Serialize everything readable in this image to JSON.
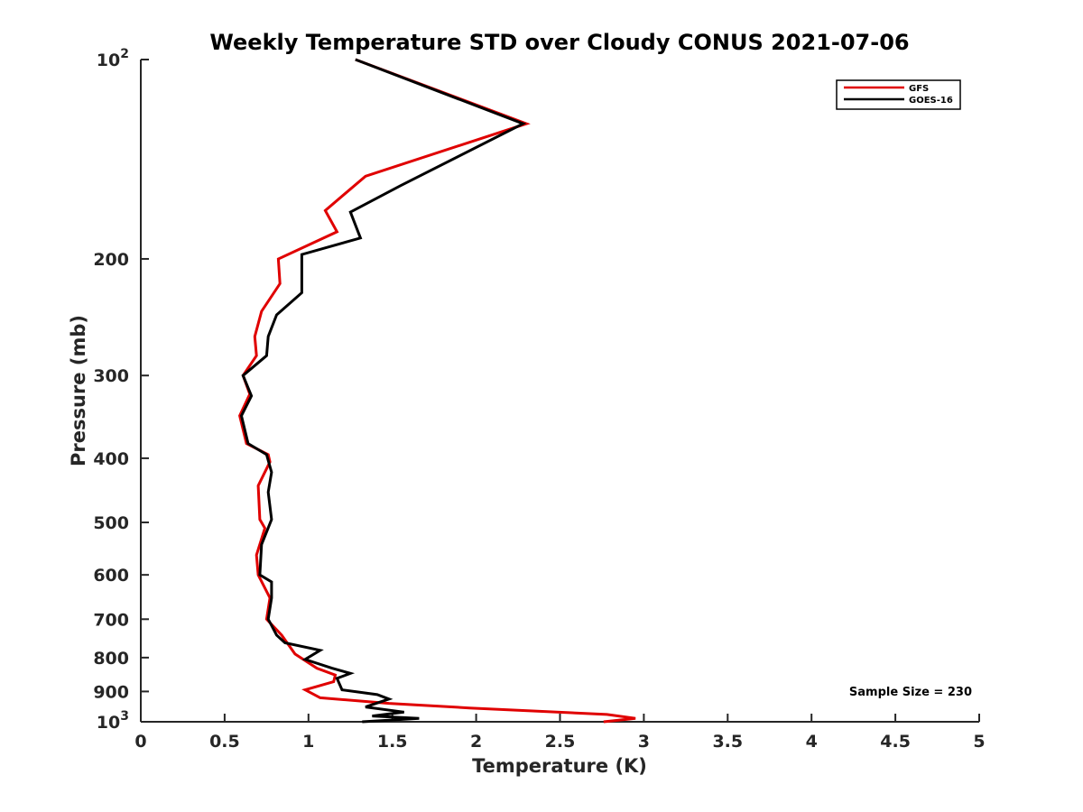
{
  "chart_data": {
    "type": "line",
    "title": "Weekly Temperature STD over Cloudy CONUS 2021-07-06",
    "xlabel": "Temperature (K)",
    "ylabel": "Pressure (mb)",
    "xlim": [
      0,
      5
    ],
    "ylim": [
      100,
      1000
    ],
    "y_scale": "log",
    "y_reversed": true,
    "x_ticks": [
      0,
      0.5,
      1,
      1.5,
      2,
      2.5,
      3,
      3.5,
      4,
      4.5,
      5
    ],
    "x_tick_labels": [
      "0",
      "0.5",
      "1",
      "1.5",
      "2",
      "2.5",
      "3",
      "3.5",
      "4",
      "4.5",
      "5"
    ],
    "y_ticks": [
      {
        "value": 100,
        "base": "10",
        "exp": "2"
      },
      {
        "value": 200,
        "label": "200"
      },
      {
        "value": 300,
        "label": "300"
      },
      {
        "value": 400,
        "label": "400"
      },
      {
        "value": 500,
        "label": "500"
      },
      {
        "value": 600,
        "label": "600"
      },
      {
        "value": 700,
        "label": "700"
      },
      {
        "value": 800,
        "label": "800"
      },
      {
        "value": 900,
        "label": "900"
      },
      {
        "value": 1000,
        "base": "10",
        "exp": "3"
      }
    ],
    "grid": false,
    "legend_position": "top-right",
    "annotation": "Sample Size = 230",
    "series": [
      {
        "name": "GFS",
        "color": "#e00000",
        "points": [
          [
            1.28,
            100
          ],
          [
            2.3,
            125
          ],
          [
            1.34,
            150
          ],
          [
            1.1,
            169
          ],
          [
            1.17,
            182
          ],
          [
            0.82,
            200
          ],
          [
            0.83,
            218
          ],
          [
            0.72,
            240
          ],
          [
            0.68,
            262
          ],
          [
            0.69,
            280
          ],
          [
            0.61,
            300
          ],
          [
            0.65,
            320
          ],
          [
            0.59,
            345
          ],
          [
            0.63,
            380
          ],
          [
            0.76,
            395
          ],
          [
            0.77,
            405
          ],
          [
            0.7,
            440
          ],
          [
            0.71,
            495
          ],
          [
            0.74,
            510
          ],
          [
            0.69,
            560
          ],
          [
            0.7,
            600
          ],
          [
            0.77,
            650
          ],
          [
            0.75,
            700
          ],
          [
            0.84,
            740
          ],
          [
            0.92,
            790
          ],
          [
            1.05,
            830
          ],
          [
            1.16,
            850
          ],
          [
            1.15,
            870
          ],
          [
            0.98,
            895
          ],
          [
            1.07,
            920
          ],
          [
            1.48,
            938
          ],
          [
            1.96,
            953
          ],
          [
            2.78,
            975
          ],
          [
            2.95,
            988
          ],
          [
            2.76,
            1000
          ]
        ]
      },
      {
        "name": "GOES-16",
        "color": "#000000",
        "points": [
          [
            1.28,
            100
          ],
          [
            2.28,
            125
          ],
          [
            1.55,
            155
          ],
          [
            1.25,
            170
          ],
          [
            1.31,
            186
          ],
          [
            0.96,
            197
          ],
          [
            0.96,
            225
          ],
          [
            0.81,
            243
          ],
          [
            0.76,
            262
          ],
          [
            0.75,
            280
          ],
          [
            0.61,
            300
          ],
          [
            0.66,
            322
          ],
          [
            0.6,
            345
          ],
          [
            0.64,
            380
          ],
          [
            0.75,
            395
          ],
          [
            0.78,
            420
          ],
          [
            0.76,
            450
          ],
          [
            0.78,
            495
          ],
          [
            0.72,
            540
          ],
          [
            0.71,
            600
          ],
          [
            0.78,
            615
          ],
          [
            0.78,
            650
          ],
          [
            0.76,
            700
          ],
          [
            0.81,
            740
          ],
          [
            0.86,
            760
          ],
          [
            1.07,
            780
          ],
          [
            0.98,
            805
          ],
          [
            1.14,
            830
          ],
          [
            1.25,
            845
          ],
          [
            1.17,
            860
          ],
          [
            1.2,
            895
          ],
          [
            1.41,
            910
          ],
          [
            1.48,
            924
          ],
          [
            1.34,
            950
          ],
          [
            1.57,
            967
          ],
          [
            1.38,
            980
          ],
          [
            1.66,
            988
          ],
          [
            1.32,
            1000
          ]
        ]
      }
    ]
  }
}
